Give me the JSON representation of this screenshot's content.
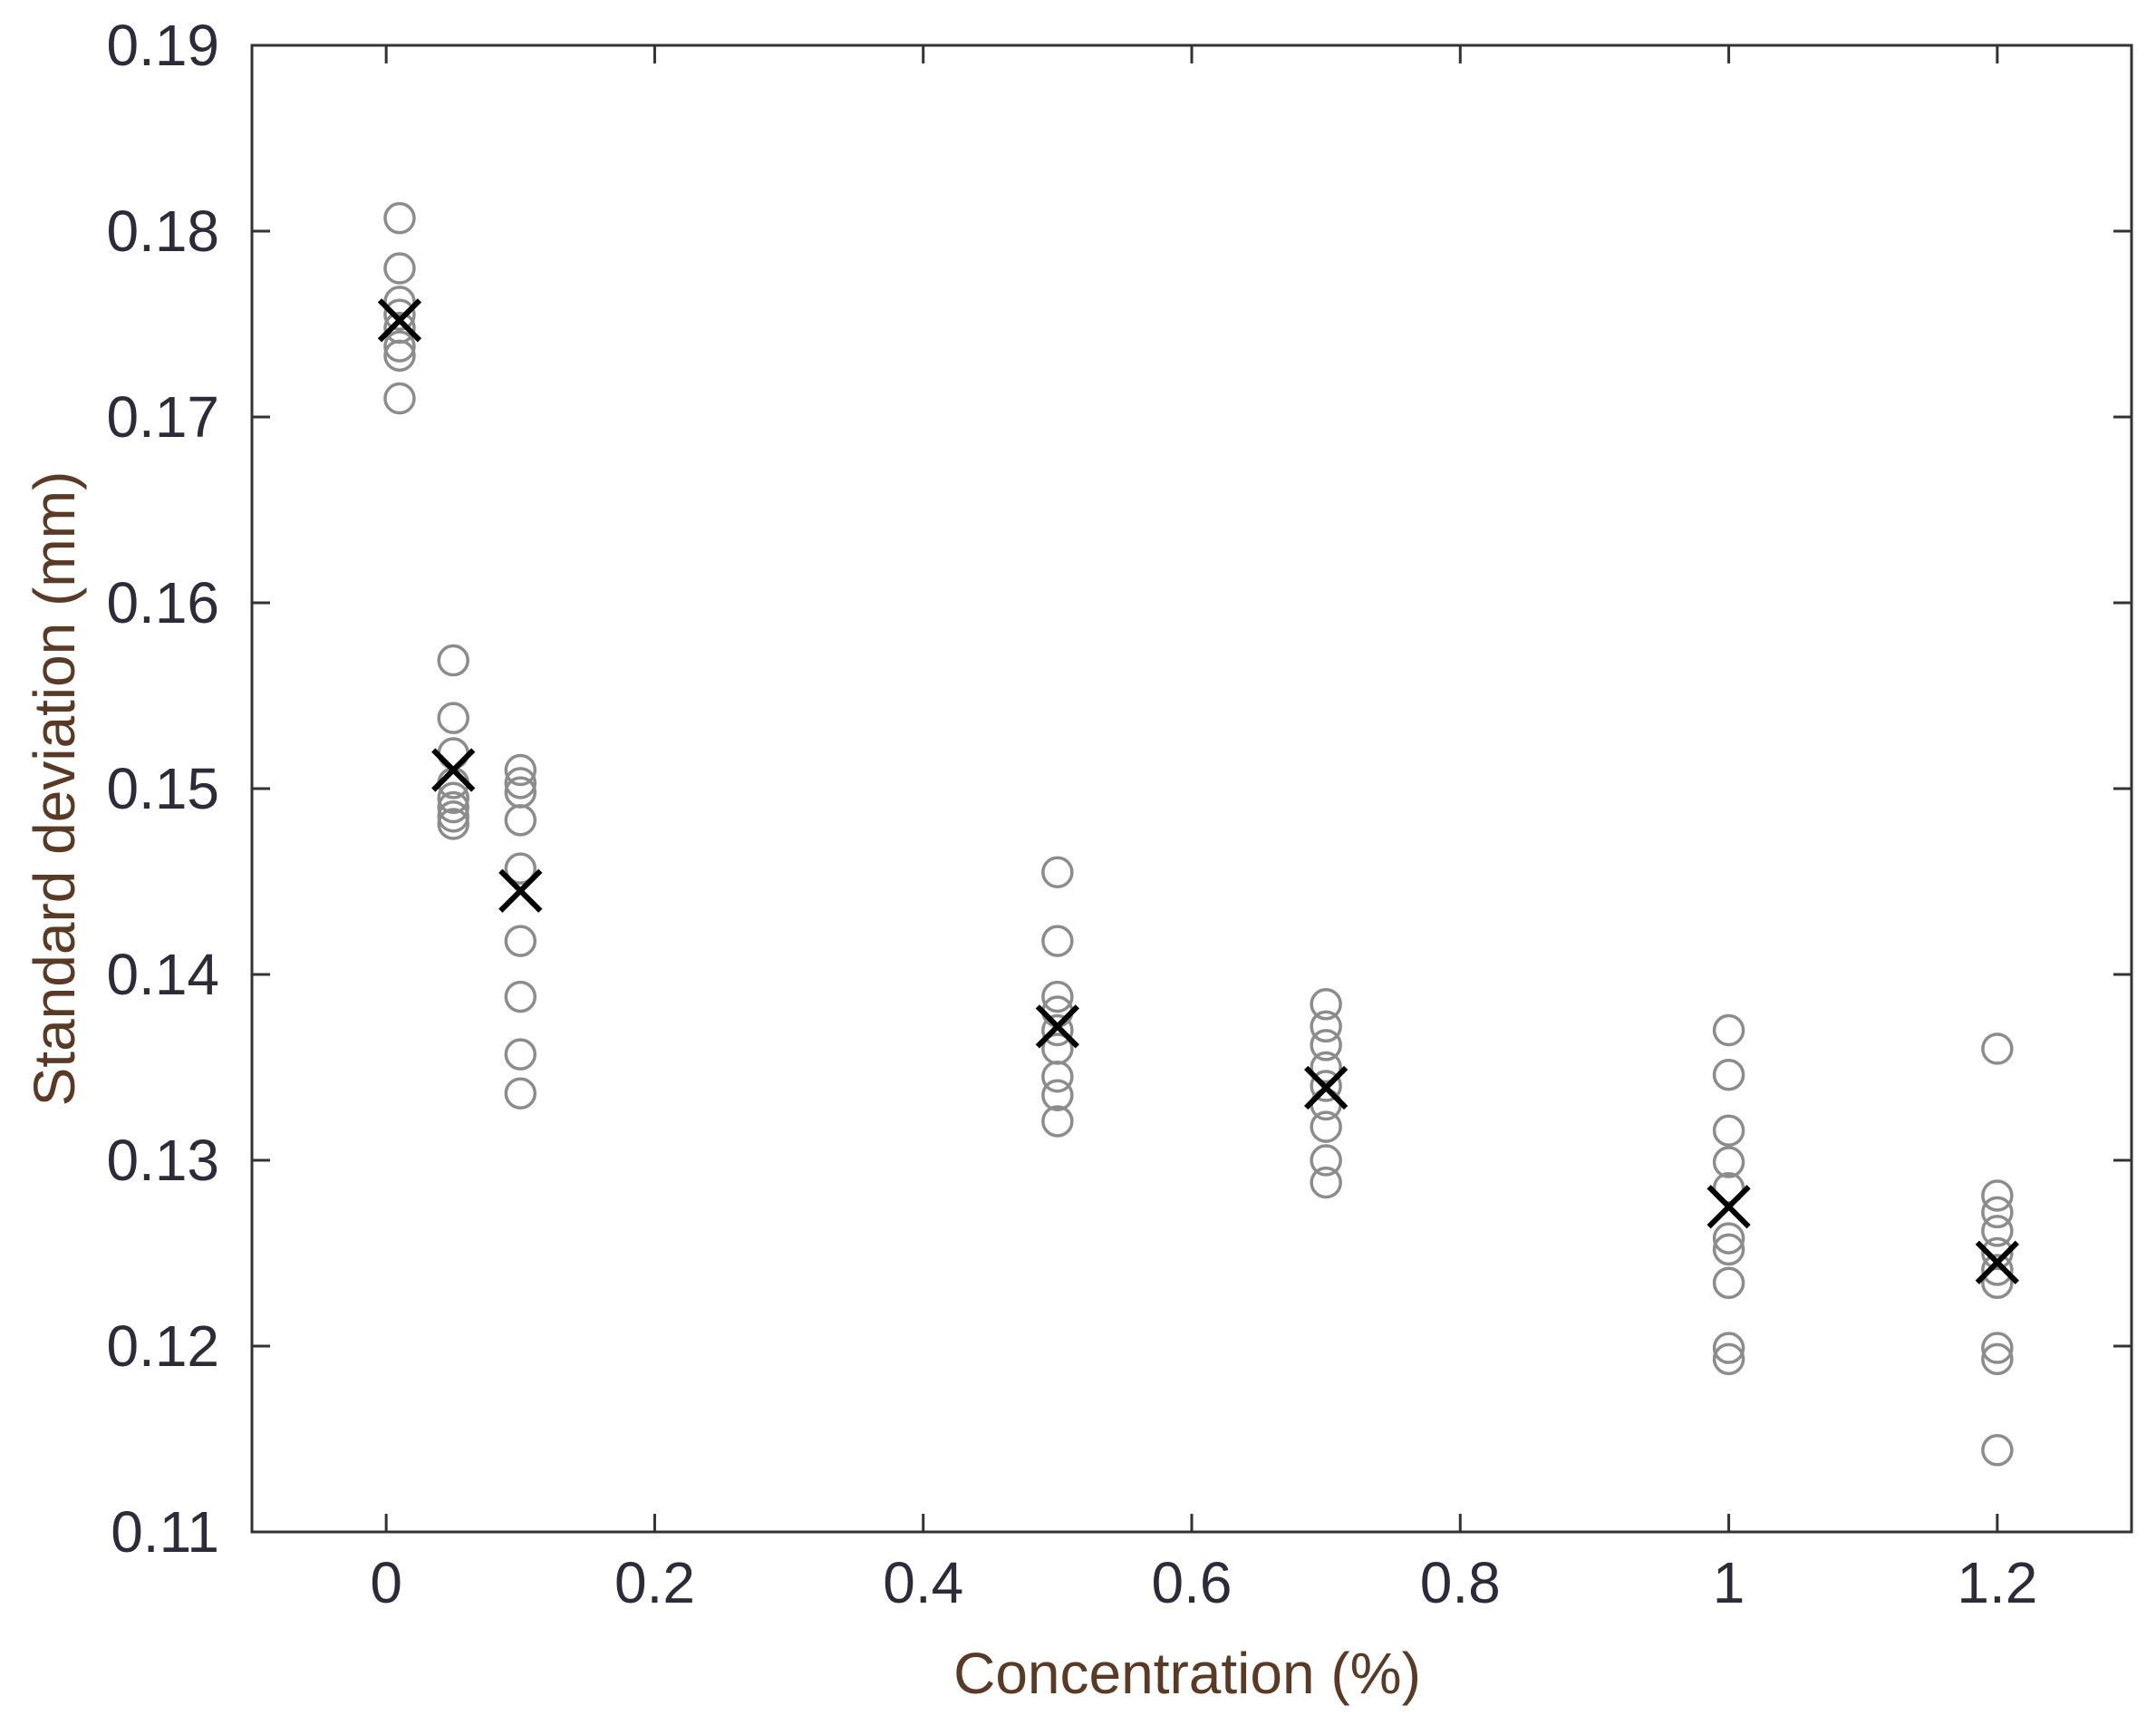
{
  "chart_data": {
    "type": "scatter",
    "title": "",
    "xlabel": "Concentration (%)",
    "ylabel": "Standard deviation (mm)",
    "xlim": [
      -0.1,
      1.3
    ],
    "ylim": [
      0.11,
      0.19
    ],
    "xticks": [
      0,
      0.2,
      0.4,
      0.6,
      0.8,
      1,
      1.2
    ],
    "xtick_labels": [
      "0",
      "0.2",
      "0.4",
      "0.6",
      "0.8",
      "1",
      "1.2"
    ],
    "yticks": [
      0.11,
      0.12,
      0.13,
      0.14,
      0.15,
      0.16,
      0.17,
      0.18,
      0.19
    ],
    "ytick_labels": [
      "0.11",
      "0.12",
      "0.13",
      "0.14",
      "0.15",
      "0.16",
      "0.17",
      "0.18",
      "0.19"
    ],
    "grid": false,
    "legend": "none",
    "colors": {
      "samples": "#8c8c8c",
      "mean": "#000000",
      "axis": "#333333"
    },
    "series": [
      {
        "marker": "circle",
        "points": [
          {
            "x": 0.01,
            "y": 0.1807
          },
          {
            "x": 0.01,
            "y": 0.178
          },
          {
            "x": 0.01,
            "y": 0.1762
          },
          {
            "x": 0.01,
            "y": 0.1755
          },
          {
            "x": 0.01,
            "y": 0.1748
          },
          {
            "x": 0.01,
            "y": 0.1738
          },
          {
            "x": 0.01,
            "y": 0.1733
          },
          {
            "x": 0.01,
            "y": 0.171
          },
          {
            "x": 0.05,
            "y": 0.1569
          },
          {
            "x": 0.05,
            "y": 0.1538
          },
          {
            "x": 0.05,
            "y": 0.1519
          },
          {
            "x": 0.05,
            "y": 0.1503
          },
          {
            "x": 0.05,
            "y": 0.1495
          },
          {
            "x": 0.05,
            "y": 0.149
          },
          {
            "x": 0.05,
            "y": 0.1485
          },
          {
            "x": 0.05,
            "y": 0.1481
          },
          {
            "x": 0.1,
            "y": 0.151
          },
          {
            "x": 0.1,
            "y": 0.1503
          },
          {
            "x": 0.1,
            "y": 0.1498
          },
          {
            "x": 0.1,
            "y": 0.1483
          },
          {
            "x": 0.1,
            "y": 0.1457
          },
          {
            "x": 0.1,
            "y": 0.1418
          },
          {
            "x": 0.1,
            "y": 0.1388
          },
          {
            "x": 0.1,
            "y": 0.1357
          },
          {
            "x": 0.1,
            "y": 0.1336
          },
          {
            "x": 0.5,
            "y": 0.1455
          },
          {
            "x": 0.5,
            "y": 0.1418
          },
          {
            "x": 0.5,
            "y": 0.1388
          },
          {
            "x": 0.5,
            "y": 0.138
          },
          {
            "x": 0.5,
            "y": 0.137
          },
          {
            "x": 0.5,
            "y": 0.136
          },
          {
            "x": 0.5,
            "y": 0.1345
          },
          {
            "x": 0.5,
            "y": 0.1335
          },
          {
            "x": 0.5,
            "y": 0.1321
          },
          {
            "x": 0.7,
            "y": 0.1384
          },
          {
            "x": 0.7,
            "y": 0.1372
          },
          {
            "x": 0.7,
            "y": 0.1362
          },
          {
            "x": 0.7,
            "y": 0.135
          },
          {
            "x": 0.7,
            "y": 0.134
          },
          {
            "x": 0.7,
            "y": 0.133
          },
          {
            "x": 0.7,
            "y": 0.1318
          },
          {
            "x": 0.7,
            "y": 0.13
          },
          {
            "x": 0.7,
            "y": 0.1288
          },
          {
            "x": 1.0,
            "y": 0.137
          },
          {
            "x": 1.0,
            "y": 0.1346
          },
          {
            "x": 1.0,
            "y": 0.1316
          },
          {
            "x": 1.0,
            "y": 0.1299
          },
          {
            "x": 1.0,
            "y": 0.1285
          },
          {
            "x": 1.0,
            "y": 0.1258
          },
          {
            "x": 1.0,
            "y": 0.1252
          },
          {
            "x": 1.0,
            "y": 0.1234
          },
          {
            "x": 1.0,
            "y": 0.1199
          },
          {
            "x": 1.0,
            "y": 0.1193
          },
          {
            "x": 1.2,
            "y": 0.136
          },
          {
            "x": 1.2,
            "y": 0.1281
          },
          {
            "x": 1.2,
            "y": 0.1272
          },
          {
            "x": 1.2,
            "y": 0.1262
          },
          {
            "x": 1.2,
            "y": 0.125
          },
          {
            "x": 1.2,
            "y": 0.1241
          },
          {
            "x": 1.2,
            "y": 0.1234
          },
          {
            "x": 1.2,
            "y": 0.1199
          },
          {
            "x": 1.2,
            "y": 0.1193
          },
          {
            "x": 1.2,
            "y": 0.1144
          }
        ]
      },
      {
        "marker": "x",
        "points": [
          {
            "x": 0.01,
            "y": 0.1752
          },
          {
            "x": 0.05,
            "y": 0.151
          },
          {
            "x": 0.1,
            "y": 0.1445
          },
          {
            "x": 0.5,
            "y": 0.1372
          },
          {
            "x": 0.7,
            "y": 0.1339
          },
          {
            "x": 1.0,
            "y": 0.1275
          },
          {
            "x": 1.2,
            "y": 0.1245
          }
        ]
      }
    ]
  }
}
